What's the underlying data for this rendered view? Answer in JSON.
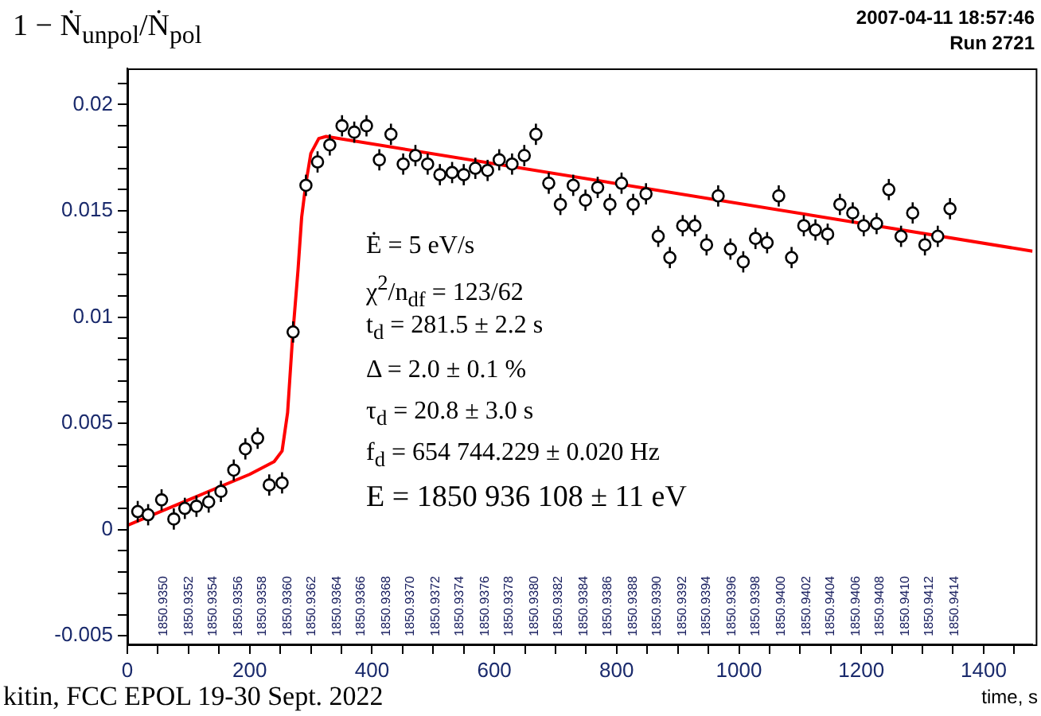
{
  "chart_data": {
    "type": "scatter",
    "title": "1 − Ṅ$_{unpol}$/Ṅ$_{pol}$",
    "xlabel": "time, s",
    "xlim": [
      0,
      1480
    ],
    "ylim": [
      -0.0054,
      0.0217
    ],
    "xticks": [
      0,
      {
        "value": 50,
        "label": null
      },
      {
        "value": 100,
        "label": null
      },
      {
        "value": 150,
        "label": null
      },
      200,
      {
        "value": 250,
        "label": null
      },
      {
        "value": 300,
        "label": null
      },
      {
        "value": 350,
        "label": null
      },
      400,
      {
        "value": 450,
        "label": null
      },
      {
        "value": 500,
        "label": null
      },
      {
        "value": 550,
        "label": null
      },
      600,
      {
        "value": 650,
        "label": null
      },
      {
        "value": 700,
        "label": null
      },
      {
        "value": 750,
        "label": null
      },
      800,
      {
        "value": 850,
        "label": null
      },
      {
        "value": 900,
        "label": null
      },
      {
        "value": 950,
        "label": null
      },
      1000,
      {
        "value": 1050,
        "label": null
      },
      {
        "value": 1100,
        "label": null
      },
      {
        "value": 1150,
        "label": null
      },
      1200,
      {
        "value": 1250,
        "label": null
      },
      {
        "value": 1300,
        "label": null
      },
      {
        "value": 1350,
        "label": null
      },
      1400,
      {
        "value": 1450,
        "label": null
      }
    ],
    "yticks": [
      -0.005,
      {
        "value": -0.004,
        "label": null
      },
      {
        "value": -0.003,
        "label": null
      },
      {
        "value": -0.002,
        "label": null
      },
      {
        "value": -0.001,
        "label": null
      },
      0,
      {
        "value": 0.001,
        "label": null
      },
      {
        "value": 0.002,
        "label": null
      },
      {
        "value": 0.003,
        "label": null
      },
      {
        "value": 0.004,
        "label": null
      },
      0.005,
      {
        "value": 0.006,
        "label": null
      },
      {
        "value": 0.007,
        "label": null
      },
      {
        "value": 0.008,
        "label": null
      },
      {
        "value": 0.009,
        "label": null
      },
      0.01,
      {
        "value": 0.011,
        "label": null
      },
      {
        "value": 0.012,
        "label": null
      },
      {
        "value": 0.013,
        "label": null
      },
      {
        "value": 0.014,
        "label": null
      },
      0.015,
      {
        "value": 0.016,
        "label": null
      },
      {
        "value": 0.017,
        "label": null
      },
      {
        "value": 0.018,
        "label": null
      },
      {
        "value": 0.019,
        "label": null
      },
      0.02,
      {
        "value": 0.021,
        "label": null
      }
    ],
    "grid": false,
    "legend": false,
    "series": [
      {
        "type": "scatter",
        "color": "#000000",
        "marker": "circle",
        "x": [
          17,
          34,
          56,
          76,
          94,
          113,
          133,
          153,
          174,
          193,
          213,
          232,
          253,
          271,
          292,
          311,
          331,
          351,
          371,
          391,
          412,
          431,
          451,
          471,
          491,
          511,
          531,
          550,
          569,
          589,
          608,
          629,
          649,
          668,
          689,
          708,
          729,
          749,
          769,
          789,
          808,
          827,
          848,
          868,
          887,
          908,
          928,
          947,
          966,
          986,
          1007,
          1027,
          1046,
          1065,
          1086,
          1106,
          1125,
          1145,
          1165,
          1186,
          1204,
          1225,
          1245,
          1265,
          1284,
          1304,
          1325,
          1345
        ],
        "values": [
          0.00085,
          0.0007,
          0.0014,
          0.0005,
          0.001,
          0.0011,
          0.0013,
          0.0018,
          0.0028,
          0.0038,
          0.0043,
          0.0021,
          0.0022,
          0.0093,
          0.0162,
          0.0173,
          0.0181,
          0.019,
          0.0187,
          0.019,
          0.0174,
          0.0186,
          0.0172,
          0.0176,
          0.0172,
          0.0167,
          0.0168,
          0.0167,
          0.017,
          0.0169,
          0.0174,
          0.0172,
          0.0176,
          0.0186,
          0.0163,
          0.0153,
          0.0162,
          0.0155,
          0.0161,
          0.0153,
          0.0163,
          0.0153,
          0.0158,
          0.0138,
          0.0128,
          0.0143,
          0.0143,
          0.0134,
          0.0157,
          0.0132,
          0.0126,
          0.0137,
          0.0135,
          0.0157,
          0.0128,
          0.0143,
          0.0141,
          0.0139,
          0.0153,
          0.0149,
          0.0143,
          0.0144,
          0.016,
          0.0138,
          0.0149,
          0.0134,
          0.0138,
          0.0151
        ],
        "errors": [
          0.0005,
          0.0005,
          0.0005,
          0.0005,
          0.0005,
          0.0005,
          0.0005,
          0.0005,
          0.0005,
          0.0005,
          0.0005,
          0.0005,
          0.0005,
          0.0005,
          0.0005,
          0.0005,
          0.0005,
          0.0005,
          0.0005,
          0.0005,
          0.0005,
          0.0005,
          0.0005,
          0.0005,
          0.0005,
          0.0005,
          0.0005,
          0.0005,
          0.0005,
          0.0005,
          0.0005,
          0.0005,
          0.0005,
          0.0005,
          0.0005,
          0.0005,
          0.0005,
          0.0005,
          0.0005,
          0.0005,
          0.0005,
          0.0005,
          0.0005,
          0.0005,
          0.0005,
          0.0005,
          0.0005,
          0.0005,
          0.0005,
          0.0005,
          0.0005,
          0.0005,
          0.0005,
          0.0005,
          0.0005,
          0.0005,
          0.0005,
          0.0005,
          0.0005,
          0.0005,
          0.0005,
          0.0005,
          0.0005,
          0.0005,
          0.0005,
          0.0005,
          0.0005,
          0.0005
        ]
      },
      {
        "type": "line",
        "color": "#ff0000",
        "marker": "none",
        "line_style": "solid",
        "x": [
          0,
          100,
          200,
          240,
          253,
          262,
          270,
          279,
          285,
          292,
          300,
          313,
          325,
          1480
        ],
        "values": [
          0.0002,
          0.0014,
          0.0026,
          0.0032,
          0.0037,
          0.0055,
          0.009,
          0.0122,
          0.0147,
          0.0163,
          0.0177,
          0.0184,
          0.0185,
          0.0131
        ]
      }
    ],
    "annotations": [
      "2007-04-11 18:57:46",
      "Run 2721",
      "Ė = 5 eV/s",
      "χ$^{2}$/n$_{df}$ = 123/62",
      "t$_{d}$ = 281.5 ± 2.2 s",
      "Δ = 2.0 ± 0.1 %",
      "τ$_{d}$ = 20.8 ± 3.0 s",
      "f$_{d}$ = 654 744.229 ± 0.020 Hz",
      "E = 1850 936 108 ± 11 eV",
      "kitin, FCC EPOL 19-30 Sept. 2022",
      "1850.9350",
      "1850.9352",
      "1850.9354",
      "1850.9356",
      "1850.9358",
      "1850.9360",
      "1850.9362",
      "1850.9364",
      "1850.9366",
      "1850.9368",
      "1850.9370",
      "1850.9372",
      "1850.9374",
      "1850.9376",
      "1850.9378",
      "1850.9380",
      "1850.9382",
      "1850.9384",
      "1850.9386",
      "1850.9388",
      "1850.9390",
      "1850.9392",
      "1850.9394",
      "1850.9396",
      "1850.9398",
      "1850.9400",
      "1850.9402",
      "1850.9404",
      "1850.9406",
      "1850.9408",
      "1850.9410",
      "1850.9412",
      "1850.9414"
    ]
  }
}
